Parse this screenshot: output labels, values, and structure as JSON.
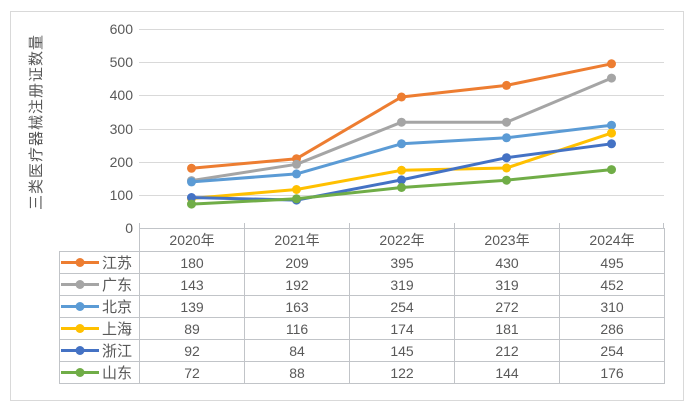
{
  "chart": {
    "y_axis_title": "三类医疗器械注册证数量",
    "y_ticks": [
      600,
      500,
      400,
      300,
      200,
      100,
      0
    ]
  },
  "chart_data": {
    "type": "line",
    "title": "",
    "xlabel": "",
    "ylabel": "三类医疗器械注册证数量",
    "categories": [
      "2020年",
      "2021年",
      "2022年",
      "2023年",
      "2024年"
    ],
    "series": [
      {
        "name": "江苏",
        "color": "#ED7D31",
        "values": [
          180,
          209,
          395,
          430,
          495
        ]
      },
      {
        "name": "广东",
        "color": "#A5A5A5",
        "values": [
          143,
          192,
          319,
          319,
          452
        ]
      },
      {
        "name": "北京",
        "color": "#5B9BD5",
        "values": [
          139,
          163,
          254,
          272,
          310
        ]
      },
      {
        "name": "上海",
        "color": "#FFC000",
        "values": [
          89,
          116,
          174,
          181,
          286
        ]
      },
      {
        "name": "浙江",
        "color": "#4472C4",
        "values": [
          92,
          84,
          145,
          212,
          254
        ]
      },
      {
        "name": "山东",
        "color": "#70AD47",
        "values": [
          72,
          88,
          122,
          144,
          176
        ]
      }
    ],
    "ylim": [
      0,
      600
    ],
    "grid": true,
    "marker": "circle",
    "legend_position": "data-table-left",
    "data_table_shown": true
  },
  "colors": {
    "grid": "#D9D9D9",
    "table_border": "#C1C4C8",
    "frame_border": "#D9D9D9",
    "text": "#595959",
    "background": "#FFFFFF"
  }
}
